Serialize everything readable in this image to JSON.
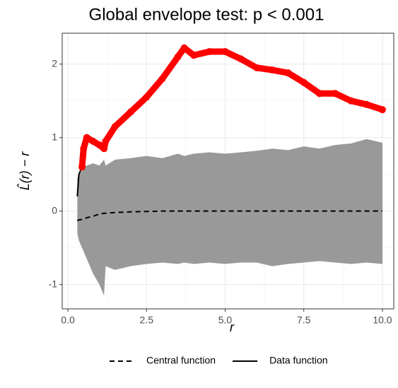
{
  "chart_data": {
    "type": "line",
    "title": "Global envelope test: p < 0.001",
    "x_label": "r",
    "y_label": "L̂(r) − r",
    "x": [
      0.3,
      0.35,
      0.45,
      0.5,
      0.6,
      0.8,
      1.0,
      1.15,
      1.2,
      1.5,
      2,
      2.5,
      3,
      3.5,
      3.7,
      4,
      4.5,
      5,
      5.5,
      6,
      6.5,
      7,
      7.5,
      8,
      8.5,
      9,
      9.5,
      10
    ],
    "envelope": {
      "color": "#999999",
      "hi": [
        0.45,
        0.5,
        0.55,
        0.6,
        0.62,
        0.65,
        0.62,
        0.7,
        0.62,
        0.7,
        0.72,
        0.75,
        0.72,
        0.78,
        0.75,
        0.78,
        0.8,
        0.78,
        0.8,
        0.82,
        0.85,
        0.83,
        0.88,
        0.85,
        0.9,
        0.92,
        0.98,
        0.93
      ],
      "lo": [
        -0.3,
        -0.4,
        -0.5,
        -0.55,
        -0.65,
        -0.85,
        -1.0,
        -1.15,
        -0.75,
        -0.8,
        -0.75,
        -0.72,
        -0.7,
        -0.72,
        -0.7,
        -0.72,
        -0.7,
        -0.72,
        -0.7,
        -0.7,
        -0.75,
        -0.72,
        -0.7,
        -0.68,
        -0.7,
        -0.72,
        -0.7,
        -0.72
      ]
    },
    "series": [
      {
        "name": "Central function",
        "color": "#000000",
        "linestyle": "dashed",
        "values": [
          -0.13,
          -0.12,
          -0.115,
          -0.11,
          -0.09,
          -0.07,
          -0.04,
          -0.03,
          -0.03,
          -0.02,
          -0.01,
          -0.005,
          0,
          0,
          0,
          0,
          0,
          0,
          0,
          0,
          0,
          0,
          0,
          0,
          0,
          0,
          0,
          0
        ]
      },
      {
        "name": "Data function",
        "color": "#000000",
        "linestyle": "solid",
        "outside_color": "#ff0000",
        "values": [
          0.2,
          0.5,
          0.6,
          0.85,
          1.0,
          0.95,
          0.9,
          0.85,
          0.95,
          1.15,
          1.35,
          1.55,
          1.8,
          2.1,
          2.22,
          2.12,
          2.17,
          2.17,
          2.07,
          1.95,
          1.92,
          1.88,
          1.75,
          1.6,
          1.6,
          1.5,
          1.45,
          1.38
        ]
      }
    ],
    "xlim": [
      -0.18,
      10.36
    ],
    "ylim": [
      -1.33,
      2.42
    ],
    "xticks": [
      {
        "value": 0,
        "label": "0.0"
      },
      2.5,
      {
        "value": 5,
        "label": "5.0"
      },
      7.5,
      {
        "value": 10,
        "label": "10.0"
      }
    ],
    "yticks": [
      -1,
      0,
      1,
      2
    ],
    "grid": true,
    "legend": "bottom"
  }
}
